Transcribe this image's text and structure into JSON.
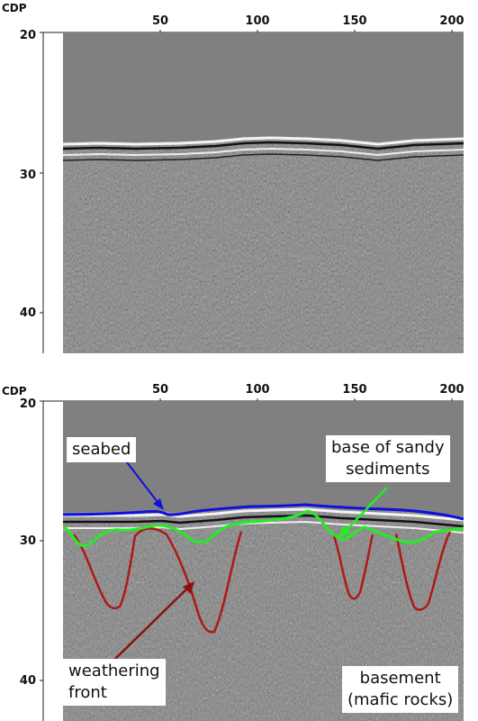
{
  "top_panel": {
    "axis_label": "CDP",
    "x_ticks": [
      "50",
      "100",
      "150",
      "200"
    ],
    "y_ticks": [
      "20",
      "30",
      "40"
    ]
  },
  "bottom_panel": {
    "axis_label": "CDP",
    "x_ticks": [
      "50",
      "100",
      "150",
      "200"
    ],
    "y_ticks": [
      "20",
      "30",
      "40"
    ],
    "annotations": {
      "seabed": "seabed",
      "sandy_line1": "base of sandy",
      "sandy_line2": "sediments",
      "weathering_line1": "weathering",
      "weathering_line2": "front",
      "basement_line1": "basement",
      "basement_line2": "(mafic rocks)"
    },
    "colors": {
      "seabed": "#1010dd",
      "base_of_sandy_sediments": "#22ee22",
      "weathering_front": "#b01818"
    }
  }
}
